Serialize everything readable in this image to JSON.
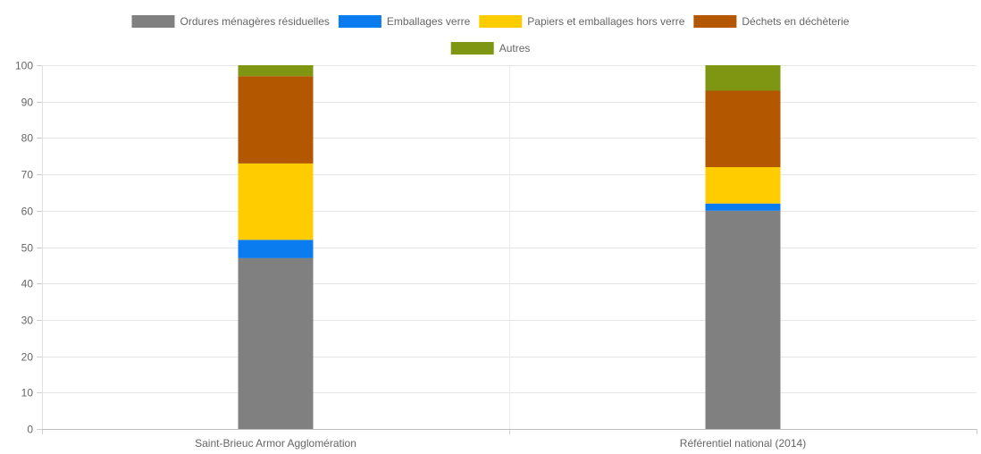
{
  "chart_data": {
    "type": "bar",
    "stacked": true,
    "categories": [
      "Saint-Brieuc Armor Agglomération",
      "Référentiel national (2014)"
    ],
    "series": [
      {
        "name": "Ordures ménagères résiduelles",
        "color": "#808080",
        "values": [
          47,
          60
        ]
      },
      {
        "name": "Emballages verre",
        "color": "#0a7cf0",
        "values": [
          5,
          2
        ]
      },
      {
        "name": "Papiers et emballages hors verre",
        "color": "#ffcc00",
        "values": [
          21,
          10
        ]
      },
      {
        "name": "Déchets en déchèterie",
        "color": "#b35700",
        "values": [
          24,
          21
        ]
      },
      {
        "name": "Autres",
        "color": "#7f9613",
        "values": [
          3,
          7
        ]
      }
    ],
    "ylim": [
      0,
      100
    ],
    "yticks": [
      0,
      10,
      20,
      30,
      40,
      50,
      60,
      70,
      80,
      90,
      100
    ],
    "grid": true,
    "legend_position": "top"
  }
}
